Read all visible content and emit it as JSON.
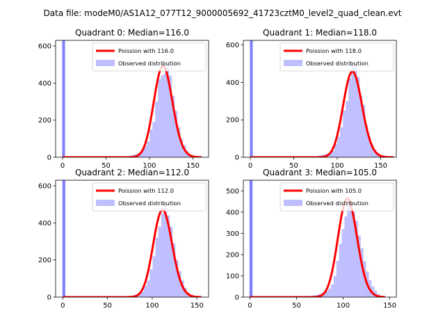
{
  "figure": {
    "suptitle": "Data file: modeM0/AS1A12_077T12_9000005692_41723cztM0_level2_quad_clean.evt"
  },
  "colors": {
    "hist": "#8080ff",
    "hist_opaque": "#7f7ffc",
    "curve": "#ff0000",
    "axis": "#000000"
  },
  "chart_data": [
    {
      "type": "bar",
      "title": "Quadrant 0: Median=116.0",
      "median": 116.0,
      "xlim": [
        -8,
        168
      ],
      "ylim": [
        0,
        630
      ],
      "xticks": [
        0,
        50,
        100,
        150
      ],
      "yticks": [
        0,
        200,
        400,
        600
      ],
      "spike": {
        "x": 0,
        "value": 630
      },
      "series": [
        {
          "name": "Poission with 116.0",
          "kind": "line",
          "mean": 116.0,
          "x_range": [
            0,
            160
          ]
        },
        {
          "name": "Observed distribution",
          "kind": "histogram",
          "bin_width": 3.2,
          "bins": [
            [
              65,
              2
            ],
            [
              68.2,
              3
            ],
            [
              71.4,
              4
            ],
            [
              74.6,
              6
            ],
            [
              77.8,
              10
            ],
            [
              81,
              14
            ],
            [
              84.2,
              20
            ],
            [
              87.4,
              28
            ],
            [
              90.6,
              40
            ],
            [
              93.8,
              60
            ],
            [
              97,
              85
            ],
            [
              100.2,
              150
            ],
            [
              103.4,
              190
            ],
            [
              106.6,
              300
            ],
            [
              109.8,
              420
            ],
            [
              113,
              440
            ],
            [
              116.2,
              450
            ],
            [
              119.4,
              520
            ],
            [
              122.6,
              440
            ],
            [
              125.8,
              330
            ],
            [
              129,
              250
            ],
            [
              132.2,
              160
            ],
            [
              135.4,
              100
            ],
            [
              138.6,
              65
            ],
            [
              141.8,
              35
            ],
            [
              145,
              15
            ],
            [
              148.2,
              6
            ],
            [
              151.4,
              3
            ]
          ]
        }
      ],
      "legend_position": "upper right"
    },
    {
      "type": "bar",
      "title": "Quadrant 1: Median=118.0",
      "median": 118.0,
      "xlim": [
        -8,
        168
      ],
      "ylim": [
        0,
        625
      ],
      "xticks": [
        0,
        50,
        100,
        150
      ],
      "yticks": [
        0,
        200,
        400,
        600
      ],
      "spike": {
        "x": 0,
        "value": 625
      },
      "series": [
        {
          "name": "Poission with 118.0",
          "kind": "line",
          "mean": 118.0,
          "x_range": [
            0,
            165
          ]
        },
        {
          "name": "Observed distribution",
          "kind": "histogram",
          "bin_width": 3.2,
          "bins": [
            [
              65,
              2
            ],
            [
              68.2,
              3
            ],
            [
              71.4,
              4
            ],
            [
              74.6,
              6
            ],
            [
              77.8,
              8
            ],
            [
              81,
              12
            ],
            [
              84.2,
              15
            ],
            [
              87.4,
              20
            ],
            [
              90.6,
              25
            ],
            [
              93.8,
              35
            ],
            [
              97,
              70
            ],
            [
              100.2,
              110
            ],
            [
              103.4,
              160
            ],
            [
              106.6,
              250
            ],
            [
              109.8,
              300
            ],
            [
              113,
              420
            ],
            [
              116.2,
              490
            ],
            [
              119.4,
              500
            ],
            [
              122.6,
              430
            ],
            [
              125.8,
              330
            ],
            [
              129,
              280
            ],
            [
              132.2,
              170
            ],
            [
              135.4,
              110
            ],
            [
              138.6,
              70
            ],
            [
              141.8,
              40
            ],
            [
              145,
              25
            ],
            [
              148.2,
              10
            ],
            [
              151.4,
              4
            ],
            [
              154.6,
              2
            ]
          ]
        }
      ],
      "legend_position": "upper right"
    },
    {
      "type": "bar",
      "title": "Quadrant 2: Median=112.0",
      "median": 112.0,
      "xlim": [
        -8,
        163
      ],
      "ylim": [
        0,
        630
      ],
      "xticks": [
        0,
        50,
        100,
        150
      ],
      "yticks": [
        0,
        200,
        400,
        600
      ],
      "spike": {
        "x": 0,
        "value": 630
      },
      "series": [
        {
          "name": "Poission with 112.0",
          "kind": "line",
          "mean": 112.0,
          "x_range": [
            0,
            155
          ]
        },
        {
          "name": "Observed distribution",
          "kind": "histogram",
          "bin_width": 3.2,
          "bins": [
            [
              62,
              2
            ],
            [
              65.2,
              3
            ],
            [
              68.4,
              4
            ],
            [
              71.6,
              5
            ],
            [
              74.8,
              7
            ],
            [
              78,
              10
            ],
            [
              81.2,
              14
            ],
            [
              84.4,
              20
            ],
            [
              87.6,
              30
            ],
            [
              90.8,
              60
            ],
            [
              94,
              90
            ],
            [
              97.2,
              150
            ],
            [
              100.4,
              220
            ],
            [
              103.6,
              320
            ],
            [
              106.8,
              380
            ],
            [
              110,
              450
            ],
            [
              113.2,
              500
            ],
            [
              116.4,
              440
            ],
            [
              119.6,
              380
            ],
            [
              122.8,
              290
            ],
            [
              126,
              200
            ],
            [
              129.2,
              140
            ],
            [
              132.4,
              90
            ],
            [
              135.6,
              50
            ],
            [
              138.8,
              25
            ],
            [
              142,
              12
            ],
            [
              145.2,
              5
            ],
            [
              148.4,
              2
            ]
          ]
        }
      ],
      "legend_position": "upper right"
    },
    {
      "type": "bar",
      "title": "Quadrant 3: Median=105.0",
      "median": 105.0,
      "xlim": [
        -7,
        157
      ],
      "ylim": [
        0,
        550
      ],
      "xticks": [
        0,
        50,
        100,
        150
      ],
      "yticks": [
        0,
        100,
        200,
        300,
        400,
        500
      ],
      "spike": {
        "x": 0,
        "value": 550
      },
      "series": [
        {
          "name": "Poission with 105.0",
          "kind": "line",
          "mean": 105.0,
          "x_range": [
            0,
            145
          ]
        },
        {
          "name": "Observed distribution",
          "kind": "histogram",
          "bin_width": 2.9,
          "bins": [
            [
              55,
              2
            ],
            [
              57.9,
              3
            ],
            [
              60.8,
              4
            ],
            [
              63.7,
              6
            ],
            [
              66.6,
              8
            ],
            [
              69.5,
              10
            ],
            [
              72.4,
              14
            ],
            [
              75.3,
              18
            ],
            [
              78.2,
              24
            ],
            [
              81.1,
              30
            ],
            [
              84,
              40
            ],
            [
              86.9,
              60
            ],
            [
              89.8,
              100
            ],
            [
              92.7,
              170
            ],
            [
              95.6,
              250
            ],
            [
              98.5,
              320
            ],
            [
              101.4,
              380
            ],
            [
              104.3,
              470
            ],
            [
              107.2,
              440
            ],
            [
              110.1,
              400
            ],
            [
              113,
              360
            ],
            [
              115.9,
              290
            ],
            [
              118.8,
              230
            ],
            [
              121.7,
              170
            ],
            [
              124.6,
              120
            ],
            [
              127.5,
              80
            ],
            [
              130.4,
              50
            ],
            [
              133.3,
              30
            ],
            [
              136.2,
              15
            ],
            [
              139.1,
              6
            ],
            [
              142,
              2
            ]
          ]
        }
      ],
      "legend_position": "upper right"
    }
  ]
}
